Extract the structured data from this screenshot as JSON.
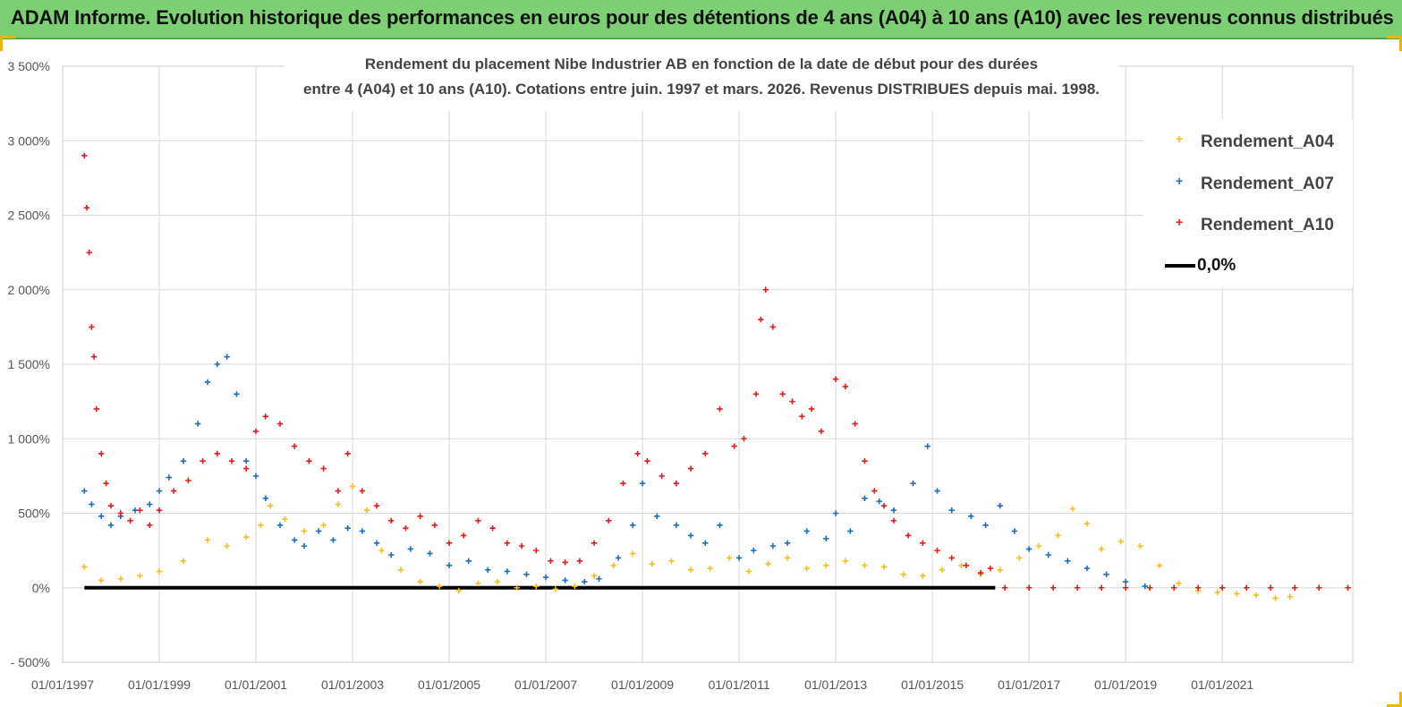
{
  "header": {
    "title": "ADAM Informe. Evolution historique des performances en euros pour des détentions de 4 ans (A04) à 10 ans (A10) avec les revenus connus distribués"
  },
  "chart_data": {
    "type": "scatter",
    "title_line1": "Rendement du placement Nibe Industrier AB en fonction de la date de début pour des durées",
    "title_line2": "entre 4 (A04) et 10 ans (A10).  Cotations entre juin. 1997 et mars. 2026. Revenus DISTRIBUES depuis mai. 1998.",
    "xlabel": "",
    "ylabel": "",
    "xlim": [
      1997.0,
      2023.7
    ],
    "ylim": [
      -500,
      3500
    ],
    "yticks": [
      -500,
      0,
      500,
      1000,
      1500,
      2000,
      2500,
      3000,
      3500
    ],
    "ytick_labels": [
      "- 500%",
      "0%",
      "500%",
      "1 000%",
      "1 500%",
      "2 000%",
      "2 500%",
      "3 000%",
      "3 500%"
    ],
    "xticks": [
      1997,
      1999,
      2001,
      2003,
      2005,
      2007,
      2009,
      2011,
      2013,
      2015,
      2017,
      2019,
      2021
    ],
    "xtick_labels": [
      "01/01/1997",
      "01/01/1999",
      "01/01/2001",
      "01/01/2003",
      "01/01/2005",
      "01/01/2007",
      "01/01/2009",
      "01/01/2011",
      "01/01/2013",
      "01/01/2015",
      "01/01/2017",
      "01/01/2019",
      "01/01/2021"
    ],
    "legend_position": "top-right",
    "series": [
      {
        "name": "Rendement_A04",
        "color": "#f5be1a",
        "x": [
          1997.45,
          1997.8,
          1998.2,
          1998.6,
          1999.0,
          1999.5,
          2000.0,
          2000.4,
          2000.8,
          2001.1,
          2001.3,
          2001.6,
          2002.0,
          2002.4,
          2002.7,
          2003.0,
          2003.3,
          2003.6,
          2004.0,
          2004.4,
          2004.8,
          2005.2,
          2005.6,
          2006.0,
          2006.4,
          2006.8,
          2007.2,
          2007.6,
          2008.0,
          2008.4,
          2008.8,
          2009.2,
          2009.6,
          2010.0,
          2010.4,
          2010.8,
          2011.2,
          2011.6,
          2012.0,
          2012.4,
          2012.8,
          2013.2,
          2013.6,
          2014.0,
          2014.4,
          2014.8,
          2015.2,
          2015.6,
          2016.0,
          2016.4,
          2016.8,
          2017.2,
          2017.6,
          2017.9,
          2018.2,
          2018.5,
          2018.9,
          2019.3,
          2019.7,
          2020.1,
          2020.5,
          2020.9,
          2021.3,
          2021.7,
          2022.1,
          2022.4
        ],
        "y": [
          140,
          50,
          60,
          80,
          110,
          180,
          320,
          280,
          340,
          420,
          550,
          460,
          380,
          420,
          560,
          680,
          520,
          250,
          120,
          40,
          10,
          -20,
          30,
          40,
          0,
          10,
          -10,
          10,
          80,
          150,
          230,
          160,
          180,
          120,
          130,
          200,
          110,
          160,
          200,
          130,
          150,
          180,
          150,
          140,
          90,
          80,
          120,
          150,
          90,
          120,
          200,
          280,
          350,
          530,
          430,
          260,
          310,
          280,
          150,
          30,
          -20,
          -30,
          -40,
          -50,
          -70,
          -60
        ]
      },
      {
        "name": "Rendement_A07",
        "color": "#1a6fbd",
        "x": [
          1997.45,
          1997.6,
          1997.8,
          1998.0,
          1998.2,
          1998.5,
          1998.8,
          1999.0,
          1999.2,
          1999.5,
          1999.8,
          2000.0,
          2000.2,
          2000.4,
          2000.6,
          2000.8,
          2001.0,
          2001.2,
          2001.5,
          2001.8,
          2002.0,
          2002.3,
          2002.6,
          2002.9,
          2003.2,
          2003.5,
          2003.8,
          2004.2,
          2004.6,
          2005.0,
          2005.4,
          2005.8,
          2006.2,
          2006.6,
          2007.0,
          2007.4,
          2007.8,
          2008.1,
          2008.5,
          2008.8,
          2009.0,
          2009.3,
          2009.7,
          2010.0,
          2010.3,
          2010.6,
          2011.0,
          2011.3,
          2011.7,
          2012.0,
          2012.4,
          2012.8,
          2013.0,
          2013.3,
          2013.6,
          2013.9,
          2014.2,
          2014.6,
          2014.9,
          2015.1,
          2015.4,
          2015.8,
          2016.1,
          2016.4,
          2016.7,
          2017.0,
          2017.4,
          2017.8,
          2018.2,
          2018.6,
          2019.0,
          2019.4
        ],
        "y": [
          650,
          560,
          480,
          420,
          480,
          520,
          560,
          650,
          740,
          850,
          1100,
          1380,
          1500,
          1550,
          1300,
          850,
          750,
          600,
          420,
          320,
          280,
          380,
          320,
          400,
          380,
          300,
          220,
          260,
          230,
          150,
          180,
          120,
          110,
          90,
          70,
          50,
          40,
          60,
          200,
          420,
          700,
          480,
          420,
          350,
          300,
          420,
          200,
          250,
          280,
          300,
          380,
          330,
          500,
          380,
          600,
          580,
          520,
          700,
          950,
          650,
          520,
          480,
          420,
          550,
          380,
          260,
          220,
          180,
          130,
          90,
          40,
          10
        ]
      },
      {
        "name": "Rendement_A10",
        "color": "#e8191a",
        "x": [
          1997.45,
          1997.5,
          1997.55,
          1997.6,
          1997.65,
          1997.7,
          1997.8,
          1997.9,
          1998.0,
          1998.2,
          1998.4,
          1998.6,
          1998.8,
          1999.0,
          1999.3,
          1999.6,
          1999.9,
          2000.2,
          2000.5,
          2000.8,
          2001.0,
          2001.2,
          2001.5,
          2001.8,
          2002.1,
          2002.4,
          2002.7,
          2002.9,
          2003.2,
          2003.5,
          2003.8,
          2004.1,
          2004.4,
          2004.7,
          2005.0,
          2005.3,
          2005.6,
          2005.9,
          2006.2,
          2006.5,
          2006.8,
          2007.1,
          2007.4,
          2007.7,
          2008.0,
          2008.3,
          2008.6,
          2008.9,
          2009.1,
          2009.4,
          2009.7,
          2010.0,
          2010.3,
          2010.6,
          2010.9,
          2011.1,
          2011.35,
          2011.45,
          2011.55,
          2011.7,
          2011.9,
          2012.1,
          2012.3,
          2012.5,
          2012.7,
          2013.0,
          2013.2,
          2013.4,
          2013.6,
          2013.8,
          2014.0,
          2014.2,
          2014.5,
          2014.8,
          2015.1,
          2015.4,
          2015.7,
          2016.0,
          2016.2,
          2016.5,
          2017.0,
          2017.5,
          2018.0,
          2018.5,
          2019.0,
          2019.5,
          2020.0,
          2020.5,
          2021.0,
          2021.5,
          2022.0,
          2022.5,
          2023.0,
          2023.6
        ],
        "y": [
          2900,
          2550,
          2250,
          1750,
          1550,
          1200,
          900,
          700,
          550,
          500,
          450,
          520,
          420,
          520,
          650,
          720,
          850,
          900,
          850,
          800,
          1050,
          1150,
          1100,
          950,
          850,
          800,
          650,
          900,
          650,
          550,
          450,
          400,
          480,
          420,
          300,
          350,
          450,
          400,
          300,
          280,
          250,
          180,
          170,
          180,
          300,
          450,
          700,
          900,
          850,
          750,
          700,
          800,
          900,
          1200,
          950,
          1000,
          1300,
          1800,
          2000,
          1750,
          1300,
          1250,
          1150,
          1200,
          1050,
          1400,
          1350,
          1100,
          850,
          650,
          550,
          450,
          350,
          300,
          250,
          200,
          150,
          100,
          130,
          0,
          0,
          0,
          0,
          0,
          0,
          0,
          0,
          0,
          0,
          0,
          0,
          0,
          0,
          0
        ]
      },
      {
        "name": "0,0%",
        "color": "#000000",
        "x": [
          1997.45,
          2016.3
        ],
        "y": [
          0,
          0
        ]
      }
    ]
  }
}
